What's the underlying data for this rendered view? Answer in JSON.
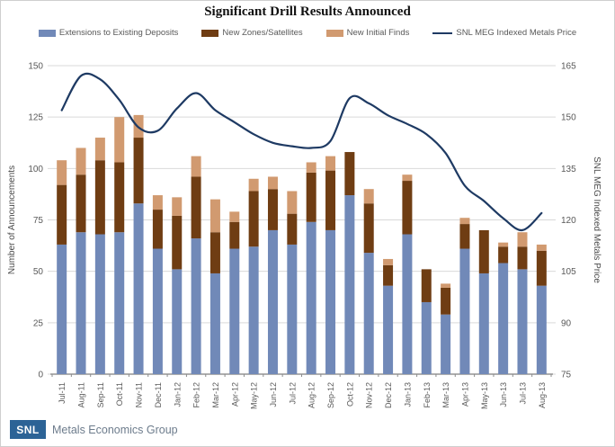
{
  "title": "Significant Drill Results Announced",
  "footer": {
    "logo": "SNL",
    "brand": "Metals Economics Group"
  },
  "chart_data": {
    "type": "combo",
    "stacked_bars": true,
    "grid": true,
    "legend_position": "top",
    "categories": [
      "Jul-11",
      "Aug-11",
      "Sep-11",
      "Oct-11",
      "Nov-11",
      "Dec-11",
      "Jan-12",
      "Feb-12",
      "Mar-12",
      "Apr-12",
      "May-12",
      "Jun-12",
      "Jul-12",
      "Aug-12",
      "Sep-12",
      "Oct-12",
      "Nov-12",
      "Dec-12",
      "Jan-13",
      "Feb-13",
      "Mar-13",
      "Apr-13",
      "May-13",
      "Jun-13",
      "Jul-13",
      "Aug-13"
    ],
    "series": [
      {
        "name": "Extensions to Existing Deposits",
        "type": "bar",
        "axis": "left",
        "color": "#7189b8",
        "values": [
          63,
          69,
          68,
          69,
          83,
          61,
          51,
          66,
          49,
          61,
          62,
          70,
          63,
          74,
          70,
          87,
          59,
          43,
          68,
          35,
          29,
          61,
          49,
          54,
          51,
          43
        ]
      },
      {
        "name": "New Zones/Satellites",
        "type": "bar",
        "axis": "left",
        "color": "#6f3d13",
        "values": [
          29,
          28,
          36,
          34,
          32,
          19,
          26,
          30,
          20,
          13,
          27,
          20,
          15,
          24,
          29,
          21,
          24,
          10,
          26,
          16,
          13,
          12,
          21,
          8,
          11,
          17
        ]
      },
      {
        "name": "New Initial Finds",
        "type": "bar",
        "axis": "left",
        "color": "#d19a70",
        "values": [
          12,
          13,
          11,
          22,
          11,
          7,
          9,
          10,
          16,
          5,
          6,
          6,
          11,
          5,
          7,
          0,
          7,
          3,
          3,
          0,
          2,
          3,
          0,
          2,
          7,
          3
        ]
      },
      {
        "name": "SNL MEG Indexed Metals Price",
        "type": "line",
        "axis": "right",
        "color": "#1e3a63",
        "values": [
          152,
          162,
          161,
          155,
          147,
          146,
          152.5,
          157,
          152,
          148.5,
          145,
          142.5,
          141.5,
          141,
          143,
          155.5,
          154,
          150.5,
          148,
          145,
          139.5,
          130,
          125.5,
          120.5,
          117,
          122
        ]
      }
    ],
    "stack_totals": [
      104,
      110,
      115,
      125,
      126,
      87,
      86,
      106,
      85,
      79,
      95,
      96,
      89,
      103,
      106,
      108,
      90,
      56,
      97,
      51,
      44,
      76,
      70,
      64,
      69,
      63
    ],
    "left_axis": {
      "label": "Number of Announcements",
      "min": 0,
      "max": 150,
      "ticks": [
        "0",
        "25",
        "50",
        "75",
        "100",
        "125",
        "150"
      ]
    },
    "right_axis": {
      "label": "SNL MEG Indexed Metals Price",
      "min": 75,
      "max": 165,
      "ticks": [
        "75",
        "90",
        "105",
        "120",
        "135",
        "150",
        "165"
      ]
    }
  }
}
